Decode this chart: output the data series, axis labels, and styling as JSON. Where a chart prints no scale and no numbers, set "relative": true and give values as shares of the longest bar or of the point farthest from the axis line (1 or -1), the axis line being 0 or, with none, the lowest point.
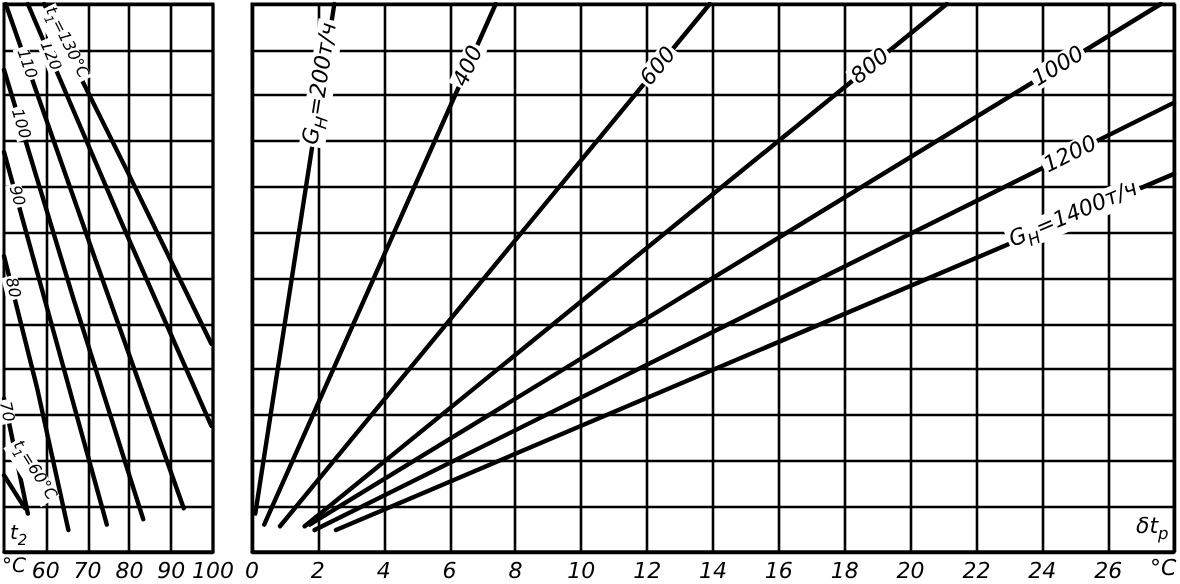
{
  "chart_data": [
    {
      "type": "line",
      "relative": true,
      "xlabel": "t$_{2}$",
      "annotations": [
        "°C"
      ],
      "xlim": [
        50,
        100
      ],
      "xticks": [
        60,
        70,
        80,
        90,
        100
      ],
      "tick_labels": "x",
      "grid": true,
      "marker": "none",
      "line_style": "solid",
      "series": [
        {
          "name": "t$_{1}$=60°C",
          "color": "#000000",
          "x": [
            50,
            55
          ],
          "values": [
            0.14,
            0.08
          ]
        },
        {
          "name": "70",
          "color": "#000000",
          "x": [
            50,
            55.7
          ],
          "values": [
            0.28,
            0.07
          ]
        },
        {
          "name": "80",
          "color": "#000000",
          "x": [
            50,
            57.9,
            65.4
          ],
          "values": [
            0.54,
            0.3,
            0.04
          ]
        },
        {
          "name": "90",
          "color": "#000000",
          "x": [
            50,
            62.3,
            74.6
          ],
          "values": [
            0.73,
            0.39,
            0.05
          ]
        },
        {
          "name": "100",
          "color": "#000000",
          "x": [
            50,
            66.7,
            83.3
          ],
          "values": [
            0.88,
            0.46,
            0.06
          ]
        },
        {
          "name": "110",
          "color": "#000000",
          "x": [
            50.4,
            71.1,
            93
          ],
          "values": [
            1,
            0.55,
            0.08
          ]
        },
        {
          "name": "120",
          "color": "#000000",
          "x": [
            55.7,
            77.6,
            99.6
          ],
          "values": [
            1,
            0.61,
            0.23
          ]
        },
        {
          "name": "t$_{1}$=130°C",
          "color": "#000000",
          "x": [
            59.6,
            79.8,
            99.6
          ],
          "values": [
            1,
            0.69,
            0.38
          ]
        }
      ]
    },
    {
      "type": "line",
      "relative": true,
      "xlabel": "δt$_{р}$",
      "annotations": [
        "°C"
      ],
      "xlim": [
        0,
        28
      ],
      "xticks": [
        0,
        2,
        4,
        6,
        8,
        10,
        12,
        14,
        16,
        18,
        20,
        22,
        24,
        26,
        {
          "value": 28,
          "label": null
        }
      ],
      "tick_labels": "x",
      "grid": true,
      "marker": "none",
      "line_style": "solid",
      "series": [
        {
          "name": "G$_{Н}$=200т/ч",
          "color": "#000000",
          "x": [
            0.1,
            2.5
          ],
          "values": [
            0.07,
            1
          ]
        },
        {
          "name": "400",
          "color": "#000000",
          "x": [
            0.37,
            7.4
          ],
          "values": [
            0.05,
            1
          ]
        },
        {
          "name": "600",
          "color": "#000000",
          "x": [
            0.85,
            13.9
          ],
          "values": [
            0.047,
            1
          ]
        },
        {
          "name": "800",
          "color": "#000000",
          "x": [
            1.6,
            21.1
          ],
          "values": [
            0.047,
            1
          ]
        },
        {
          "name": "1000",
          "color": "#000000",
          "x": [
            1.75,
            27.6
          ],
          "values": [
            0.05,
            1
          ]
        },
        {
          "name": "1200",
          "color": "#000000",
          "x": [
            1.9,
            28
          ],
          "values": [
            0.04,
            0.82
          ]
        },
        {
          "name": "G$_{Н}$=1400т/ч",
          "color": "#000000",
          "x": [
            2.55,
            28
          ],
          "values": [
            0.04,
            0.69
          ]
        }
      ]
    }
  ]
}
